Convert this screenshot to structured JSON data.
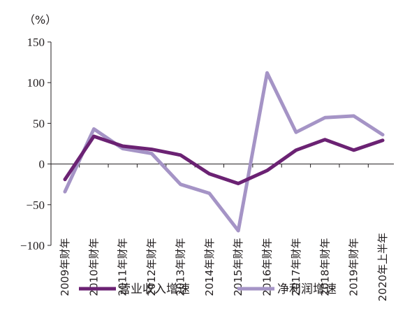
{
  "chart_data": {
    "type": "line",
    "unit_label": "（%）",
    "categories": [
      "2009年财年",
      "2010年财年",
      "2011年财年",
      "2012年财年",
      "2013年财年",
      "2014年财年",
      "2015年财年",
      "2016年财年",
      "2017年财年",
      "2018年财年",
      "2019年财年",
      "2020年上半年"
    ],
    "ylim": [
      -100,
      150
    ],
    "yticks": [
      150,
      100,
      50,
      0,
      -50,
      -100
    ],
    "ytick_labels": [
      "150",
      "100",
      "50",
      "0",
      "−50",
      "−100"
    ],
    "grid": false,
    "legend_position": "bottom",
    "series": [
      {
        "name": "营业收入增速",
        "color": "#6b2273",
        "values": [
          -19,
          34,
          22,
          18,
          11,
          -12,
          -24,
          -8,
          17,
          30,
          17,
          29
        ]
      },
      {
        "name": "净利润增速",
        "color": "#a594c6",
        "values": [
          -34,
          43,
          19,
          13,
          -25,
          -36,
          -82,
          112,
          39,
          57,
          59,
          36
        ]
      }
    ]
  }
}
